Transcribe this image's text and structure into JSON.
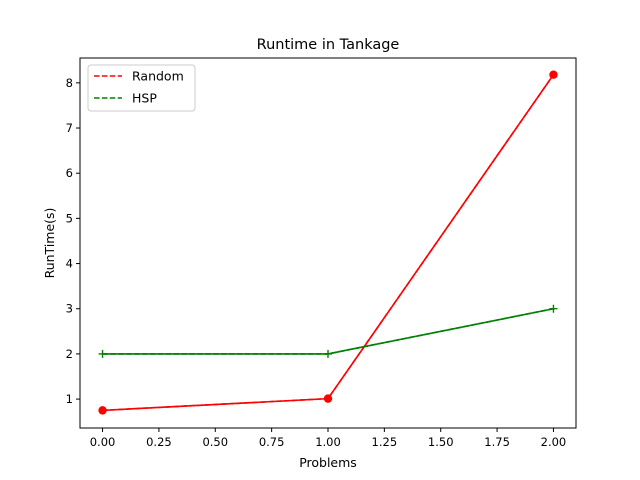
{
  "chart_data": {
    "type": "line",
    "title": "Runtime in Tankage",
    "xlabel": "Problems",
    "ylabel": "RunTime(s)",
    "x": [
      0,
      1,
      2
    ],
    "xlim": [
      -0.1,
      2.1
    ],
    "ylim": [
      0.36,
      8.55
    ],
    "xticks": [
      "0.00",
      "0.25",
      "0.50",
      "0.75",
      "1.00",
      "1.25",
      "1.50",
      "1.75",
      "2.00"
    ],
    "xtick_values": [
      0,
      0.25,
      0.5,
      0.75,
      1.0,
      1.25,
      1.5,
      1.75,
      2.0
    ],
    "yticks": [
      "1",
      "2",
      "3",
      "4",
      "5",
      "6",
      "7",
      "8"
    ],
    "ytick_values": [
      1,
      2,
      3,
      4,
      5,
      6,
      7,
      8
    ],
    "grid": false,
    "legend_position": "top-left",
    "series": [
      {
        "name": "Random",
        "color": "#ff0000",
        "marker": "circle",
        "values": [
          0.75,
          1.01,
          8.18
        ]
      },
      {
        "name": "HSP",
        "color": "#008000",
        "marker": "plus",
        "values": [
          2.0,
          2.0,
          3.0
        ]
      }
    ]
  }
}
